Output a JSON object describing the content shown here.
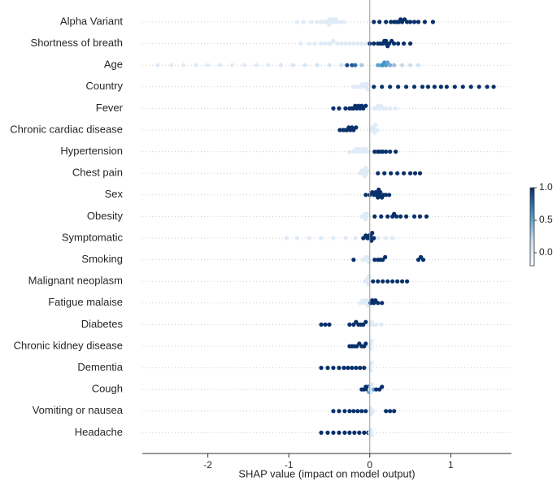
{
  "chart_data": {
    "type": "beeswarm",
    "xlabel": "SHAP value (impact on model output)",
    "xlim": [
      -2.81,
      1.75
    ],
    "xticks": [
      -2,
      -1,
      0,
      1
    ],
    "colorbar_lim": [
      -0.2,
      1.0
    ],
    "colorbar_ticks": [
      {
        "value": 1.0,
        "label": "1.0"
      },
      {
        "value": 0.5,
        "label": "0.5"
      },
      {
        "value": 0.0,
        "label": "0.0"
      }
    ],
    "colormap": [
      "#f7fbff",
      "#c6dbef",
      "#4292c6",
      "#08306b"
    ],
    "grid": true,
    "series": [
      {
        "name": "Alpha Variant",
        "values": [
          -0.9,
          -0.82,
          -0.72,
          -0.65,
          -0.6,
          -0.56,
          -0.53,
          -0.5,
          -0.5,
          -0.48,
          -0.46,
          -0.44,
          -0.42,
          -0.4,
          -0.36,
          -0.32,
          0.05,
          0.12,
          0.2,
          0.26,
          0.3,
          0.33,
          0.36,
          0.38,
          0.4,
          0.43,
          0.46,
          0.5,
          0.55,
          0.6,
          0.68,
          0.78
        ],
        "feature_values": [
          0,
          0,
          0,
          0,
          0,
          0,
          0,
          0,
          0,
          0,
          0,
          0,
          0,
          0,
          0,
          0,
          1,
          1,
          1,
          1,
          1,
          1,
          1,
          1,
          1,
          1,
          1,
          1,
          1,
          1,
          1,
          1
        ]
      },
      {
        "name": "Shortness of breath",
        "values": [
          -0.85,
          -0.75,
          -0.68,
          -0.6,
          -0.55,
          -0.5,
          -0.48,
          -0.45,
          -0.4,
          -0.35,
          -0.3,
          -0.25,
          -0.2,
          -0.15,
          -0.1,
          -0.05,
          0.0,
          0.05,
          0.1,
          0.13,
          0.16,
          0.18,
          0.2,
          0.2,
          0.22,
          0.24,
          0.27,
          0.3,
          0.35,
          0.42,
          0.5
        ],
        "feature_values": [
          0,
          0,
          0,
          0,
          0,
          0,
          0,
          0,
          0,
          0,
          0,
          0,
          0,
          0,
          0,
          0,
          1,
          1,
          1,
          1,
          1,
          1,
          1,
          1,
          1,
          1,
          1,
          1,
          1,
          1,
          1
        ]
      },
      {
        "name": "Age",
        "values": [
          -2.62,
          -2.45,
          -2.3,
          -2.15,
          -2.0,
          -1.85,
          -1.7,
          -1.55,
          -1.4,
          -1.25,
          -1.1,
          -0.95,
          -0.8,
          -0.65,
          -0.5,
          -0.35,
          -0.28,
          -0.22,
          -0.18,
          -0.1,
          0.1,
          0.14,
          0.16,
          0.18,
          0.2,
          0.22,
          0.25,
          0.3,
          0.4,
          0.5,
          0.6
        ],
        "feature_values": [
          0,
          0,
          0,
          0,
          0,
          0,
          0,
          0,
          0,
          0,
          0.05,
          0.05,
          0.05,
          0.1,
          0.1,
          0.1,
          0.9,
          0.85,
          0.75,
          0.3,
          0.5,
          0.55,
          0.6,
          0.6,
          0.55,
          0.5,
          0.45,
          0.35,
          0.2,
          0.15,
          0.1
        ]
      },
      {
        "name": "Country",
        "values": [
          -0.2,
          -0.16,
          -0.12,
          -0.09,
          -0.07,
          -0.05,
          -0.04,
          -0.03,
          -0.02,
          0.05,
          0.15,
          0.25,
          0.35,
          0.45,
          0.55,
          0.65,
          0.72,
          0.8,
          0.88,
          0.95,
          1.05,
          1.15,
          1.25,
          1.35,
          1.45,
          1.53
        ],
        "feature_values": [
          0,
          0,
          0,
          0,
          0,
          0,
          0,
          0,
          0,
          1,
          1,
          1,
          1,
          1,
          1,
          1,
          1,
          1,
          1,
          1,
          1,
          1,
          1,
          1,
          1,
          1
        ]
      },
      {
        "name": "Fever",
        "values": [
          -0.45,
          -0.38,
          -0.3,
          -0.25,
          -0.22,
          -0.2,
          -0.18,
          -0.16,
          -0.14,
          -0.12,
          -0.1,
          -0.08,
          -0.05,
          0.05,
          0.08,
          0.1,
          0.12,
          0.14,
          0.17,
          0.2,
          0.25,
          0.32
        ],
        "feature_values": [
          1,
          1,
          1,
          1,
          1,
          1,
          1,
          1,
          1,
          1,
          1,
          1,
          1,
          0,
          0,
          0,
          0,
          0,
          0,
          0,
          0,
          0
        ]
      },
      {
        "name": "Chronic cardiac disease",
        "values": [
          -0.37,
          -0.33,
          -0.3,
          -0.28,
          -0.26,
          -0.24,
          -0.22,
          -0.2,
          -0.17,
          0.01,
          0.03,
          0.04,
          0.05,
          0.06,
          0.07,
          0.09
        ],
        "feature_values": [
          1,
          1,
          1,
          1,
          1,
          1,
          1,
          1,
          1,
          0,
          0,
          0,
          0,
          0,
          0,
          0
        ]
      },
      {
        "name": "Hypertension",
        "values": [
          -0.25,
          -0.2,
          -0.17,
          -0.15,
          -0.13,
          -0.11,
          -0.09,
          -0.07,
          -0.05,
          -0.03,
          0.06,
          0.1,
          0.13,
          0.16,
          0.2,
          0.25,
          0.32
        ],
        "feature_values": [
          0,
          0,
          0,
          0,
          0,
          0,
          0,
          0,
          0,
          0,
          1,
          1,
          1,
          1,
          1,
          1,
          1
        ]
      },
      {
        "name": "Chest pain",
        "values": [
          -0.12,
          -0.1,
          -0.08,
          -0.07,
          -0.06,
          -0.05,
          -0.04,
          -0.03,
          0.1,
          0.18,
          0.26,
          0.34,
          0.42,
          0.5,
          0.56,
          0.62
        ],
        "feature_values": [
          0,
          0,
          0,
          0,
          0,
          0,
          0,
          0,
          1,
          1,
          1,
          1,
          1,
          1,
          1,
          1
        ]
      },
      {
        "name": "Sex",
        "values": [
          -0.05,
          0.0,
          0.03,
          0.05,
          0.07,
          0.08,
          0.09,
          0.1,
          0.11,
          0.12,
          0.13,
          0.15,
          0.17,
          0.2,
          0.24
        ],
        "feature_values": [
          1,
          1,
          1,
          1,
          1,
          1,
          1,
          1,
          1,
          1,
          1,
          1,
          1,
          1,
          1
        ]
      },
      {
        "name": "Obesity",
        "values": [
          -0.1,
          -0.08,
          -0.06,
          -0.05,
          -0.04,
          -0.03,
          0.06,
          0.14,
          0.22,
          0.28,
          0.3,
          0.33,
          0.38,
          0.45,
          0.55,
          0.62,
          0.7
        ],
        "feature_values": [
          0,
          0,
          0,
          0,
          0,
          0,
          1,
          1,
          1,
          1,
          1,
          1,
          1,
          1,
          1,
          1,
          1
        ]
      },
      {
        "name": "Symptomatic",
        "values": [
          -1.03,
          -0.9,
          -0.75,
          -0.6,
          -0.45,
          -0.3,
          -0.18,
          -0.08,
          -0.05,
          -0.03,
          -0.01,
          0.0,
          0.01,
          0.02,
          0.03,
          0.05,
          0.1,
          0.2,
          0.28
        ],
        "feature_values": [
          0,
          0,
          0,
          0,
          0,
          0,
          0,
          1,
          1,
          1,
          1,
          1,
          1,
          1,
          1,
          1,
          0,
          0,
          0
        ]
      },
      {
        "name": "Smoking",
        "values": [
          -0.2,
          -0.09,
          -0.07,
          -0.05,
          -0.03,
          -0.02,
          -0.01,
          0.06,
          0.1,
          0.13,
          0.16,
          0.19,
          0.6,
          0.63,
          0.66
        ],
        "feature_values": [
          1,
          0,
          0,
          0,
          0,
          0,
          0,
          1,
          1,
          1,
          1,
          1,
          1,
          1,
          1
        ]
      },
      {
        "name": "Malignant neoplasm",
        "values": [
          -0.06,
          -0.04,
          -0.03,
          -0.02,
          -0.01,
          0.04,
          0.1,
          0.16,
          0.22,
          0.28,
          0.34,
          0.4,
          0.46
        ],
        "feature_values": [
          0,
          0,
          0,
          0,
          0,
          1,
          1,
          1,
          1,
          1,
          1,
          1,
          1
        ]
      },
      {
        "name": "Fatigue malaise",
        "values": [
          -0.12,
          -0.09,
          -0.07,
          -0.05,
          -0.04,
          -0.03,
          -0.02,
          0.01,
          0.03,
          0.05,
          0.07,
          0.1,
          0.15
        ],
        "feature_values": [
          0,
          0,
          0,
          0,
          0,
          0,
          0,
          1,
          1,
          1,
          1,
          1,
          1
        ]
      },
      {
        "name": "Diabetes",
        "values": [
          -0.6,
          -0.55,
          -0.5,
          -0.25,
          -0.2,
          -0.17,
          -0.14,
          -0.11,
          -0.08,
          -0.05,
          0.0,
          0.02,
          0.04,
          0.08,
          0.14
        ],
        "feature_values": [
          1,
          1,
          1,
          1,
          1,
          1,
          1,
          1,
          1,
          1,
          0,
          0,
          0,
          0,
          0
        ]
      },
      {
        "name": "Chronic kidney disease",
        "values": [
          -0.25,
          -0.22,
          -0.19,
          -0.16,
          -0.13,
          -0.1,
          -0.07,
          -0.05,
          0.0,
          0.01,
          0.01,
          0.02
        ],
        "feature_values": [
          1,
          1,
          1,
          1,
          1,
          1,
          1,
          1,
          0,
          0,
          0,
          0
        ]
      },
      {
        "name": "Dementia",
        "values": [
          -0.6,
          -0.52,
          -0.45,
          -0.38,
          -0.32,
          -0.27,
          -0.22,
          -0.17,
          -0.12,
          -0.07,
          0.0,
          0.01,
          0.01,
          0.02
        ],
        "feature_values": [
          1,
          1,
          1,
          1,
          1,
          1,
          1,
          1,
          1,
          1,
          0,
          0,
          0,
          0
        ]
      },
      {
        "name": "Cough",
        "values": [
          -0.1,
          -0.07,
          -0.05,
          -0.03,
          -0.02,
          -0.01,
          0.0,
          0.01,
          0.02,
          0.03,
          0.05,
          0.08,
          0.12,
          0.15
        ],
        "feature_values": [
          1,
          1,
          1,
          1,
          1,
          0.5,
          0,
          0,
          0,
          0,
          0.5,
          1,
          1,
          1
        ]
      },
      {
        "name": "Vomiting or nausea",
        "values": [
          -0.45,
          -0.38,
          -0.31,
          -0.25,
          -0.2,
          -0.15,
          -0.1,
          -0.05,
          0.0,
          0.01,
          0.02,
          0.04,
          0.2,
          0.25,
          0.3
        ],
        "feature_values": [
          1,
          1,
          1,
          1,
          1,
          1,
          1,
          1,
          0,
          0,
          0,
          0,
          1,
          1,
          1
        ]
      },
      {
        "name": "Headache",
        "values": [
          -0.6,
          -0.52,
          -0.45,
          -0.38,
          -0.31,
          -0.25,
          -0.19,
          -0.13,
          -0.07,
          -0.02,
          0.0,
          0.01,
          0.02
        ],
        "feature_values": [
          1,
          1,
          1,
          1,
          1,
          1,
          1,
          1,
          1,
          1,
          0,
          0,
          0
        ]
      }
    ]
  }
}
